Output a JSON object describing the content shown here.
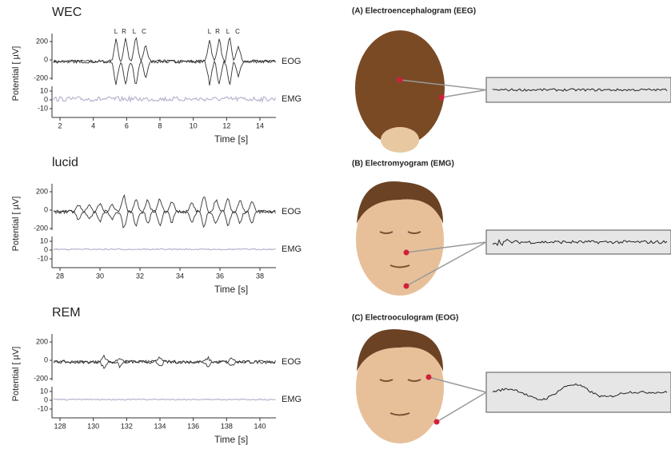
{
  "left": {
    "panels": [
      {
        "title": "WEC",
        "ylabel": "Potential [ µV]",
        "eog_ticks": [
          200,
          0,
          -200
        ],
        "emg_ticks": [
          10,
          0,
          -10
        ],
        "xticks": [
          2,
          4,
          6,
          8,
          10,
          12,
          14
        ],
        "xlabel": "Time [s]",
        "traces": [
          "EOG",
          "EMG"
        ],
        "annotations": [
          "L",
          "R",
          "L",
          "C",
          "L",
          "R",
          "L",
          "C"
        ]
      },
      {
        "title": "lucid",
        "ylabel": "Potential [ µV]",
        "eog_ticks": [
          200,
          0,
          -200
        ],
        "emg_ticks": [
          10,
          0,
          -10
        ],
        "xticks": [
          28,
          30,
          32,
          34,
          36,
          38
        ],
        "xlabel": "Time [s]",
        "traces": [
          "EOG",
          "EMG"
        ]
      },
      {
        "title": "REM",
        "ylabel": "Potential [ µV]",
        "eog_ticks": [
          200,
          0,
          -200
        ],
        "emg_ticks": [
          10,
          0,
          -10
        ],
        "xticks": [
          128,
          130,
          132,
          134,
          136,
          138,
          140
        ],
        "xlabel": "Time [s]",
        "traces": [
          "EOG",
          "EMG"
        ]
      }
    ]
  },
  "right": {
    "panels": [
      {
        "title": "(A) Electroencephalogram (EEG)"
      },
      {
        "title": "(B) Electromyogram (EMG)"
      },
      {
        "title": "(C) Electrooculogram (EOG)"
      }
    ]
  }
}
